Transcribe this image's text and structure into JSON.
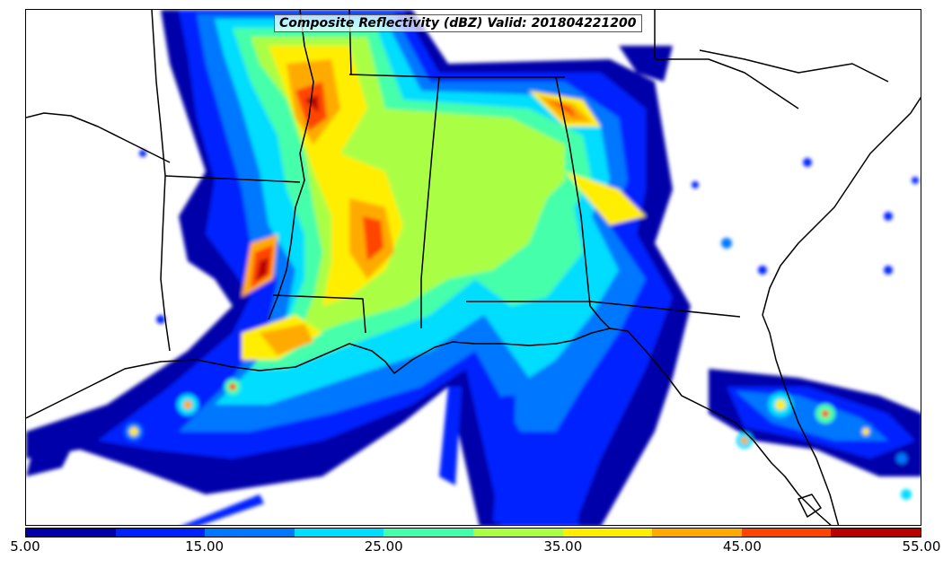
{
  "title": "Composite Reflectivity (dBZ) Valid: 201804221200",
  "colorbar": {
    "colors": [
      "#0000aa",
      "#0022ff",
      "#0077ff",
      "#00ddff",
      "#44ffaa",
      "#aaff44",
      "#ffee00",
      "#ffaa00",
      "#ff4400",
      "#bb0000"
    ],
    "ticks": [
      "5.00",
      "15.00",
      "25.00",
      "35.00",
      "45.00",
      "55.00"
    ]
  },
  "map": {
    "background_color": "#ffffff",
    "boundary_color": "#000000"
  }
}
